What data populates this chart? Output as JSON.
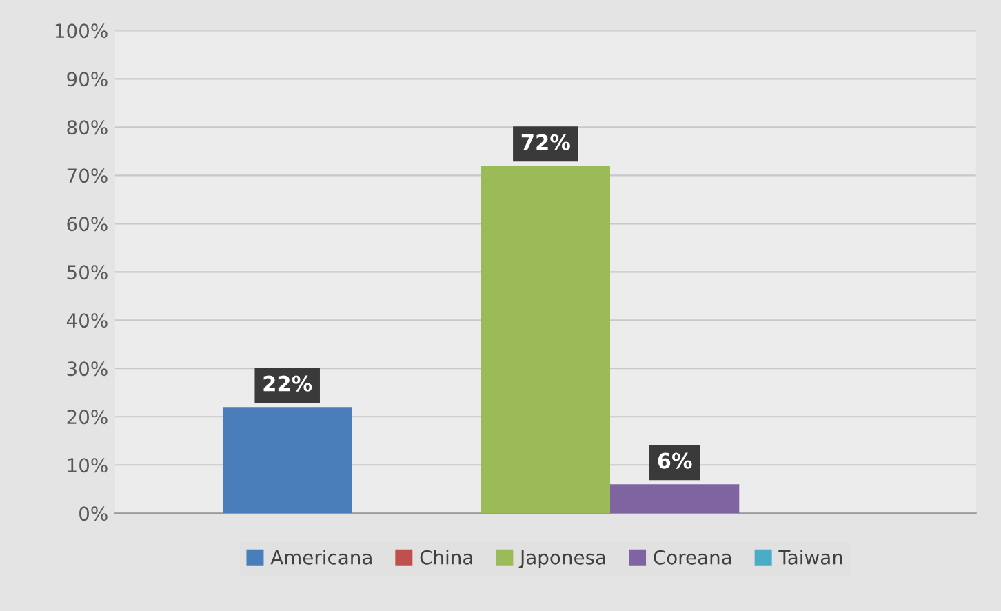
{
  "chart_data": {
    "type": "bar",
    "categories": [
      null
    ],
    "series": [
      {
        "name": "Americana",
        "color": "#4a7ebb",
        "values": [
          22
        ],
        "value_labels": [
          "22%"
        ]
      },
      {
        "name": "China",
        "color": "#c0504d",
        "values": [
          0
        ],
        "value_labels": [
          null
        ]
      },
      {
        "name": "Japonesa",
        "color": "#9bbb59",
        "values": [
          72
        ],
        "value_labels": [
          "72%"
        ]
      },
      {
        "name": "Coreana",
        "color": "#8064a2",
        "values": [
          6
        ],
        "value_labels": [
          "6%"
        ]
      },
      {
        "name": "Taiwan",
        "color": "#4bacc6",
        "values": [
          0
        ],
        "value_labels": [
          null
        ]
      }
    ],
    "ylim": [
      0,
      100
    ],
    "yticks": [
      {
        "value": 0,
        "label": "0%"
      },
      {
        "value": 10,
        "label": "10%"
      },
      {
        "value": 20,
        "label": "20%"
      },
      {
        "value": 30,
        "label": "30%"
      },
      {
        "value": 40,
        "label": "40%"
      },
      {
        "value": 50,
        "label": "50%"
      },
      {
        "value": 60,
        "label": "60%"
      },
      {
        "value": 70,
        "label": "70%"
      },
      {
        "value": 80,
        "label": "80%"
      },
      {
        "value": 90,
        "label": "90%"
      },
      {
        "value": 100,
        "label": "100%"
      }
    ],
    "grid": "y",
    "legend": "bottom"
  }
}
